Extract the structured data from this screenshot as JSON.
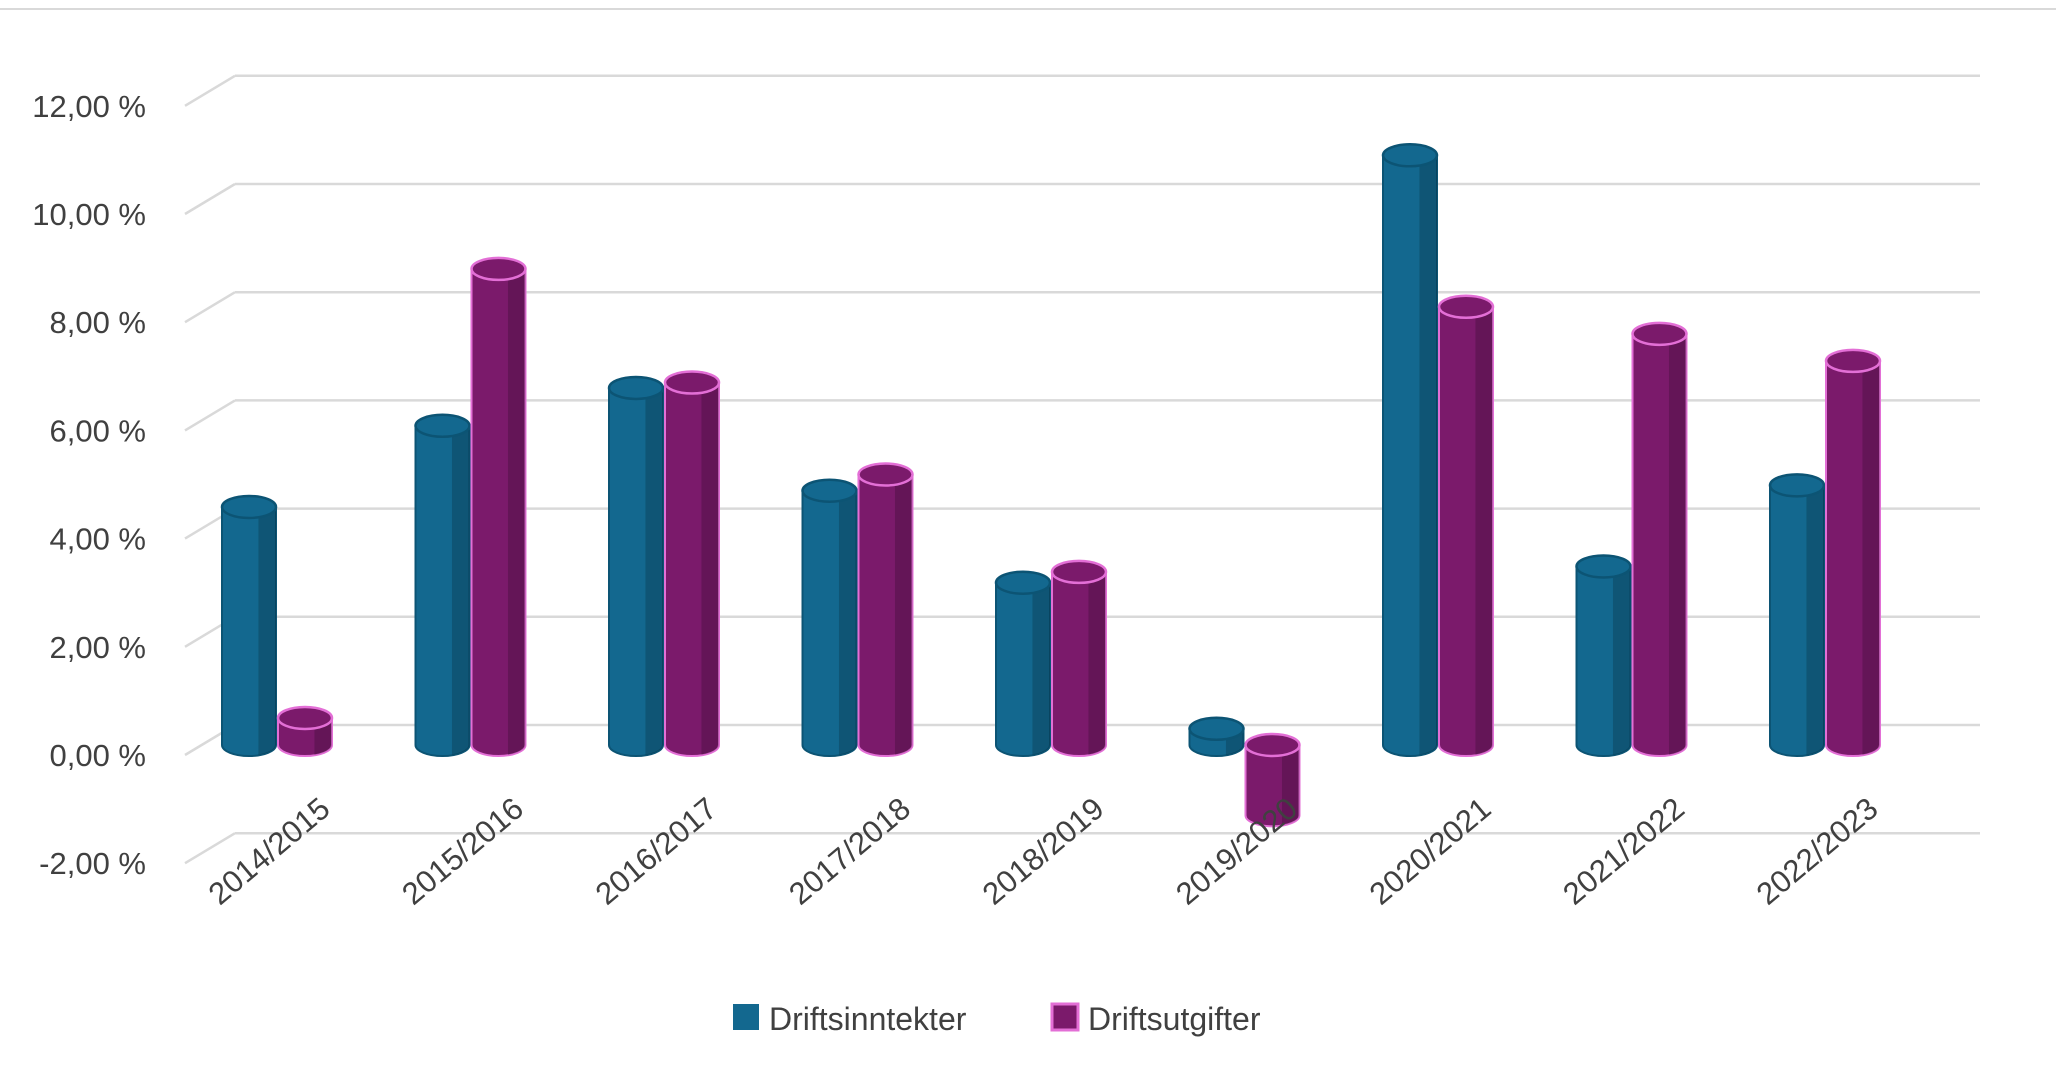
{
  "chart_data": {
    "type": "bar",
    "style": "3d-cylinder-clustered",
    "categories": [
      "2014/2015",
      "2015/2016",
      "2016/2017",
      "2017/2018",
      "2018/2019",
      "2019/2020",
      "2020/2021",
      "2021/2022",
      "2022/2023"
    ],
    "series": [
      {
        "name": "Driftsinntekter",
        "color": "#13688f",
        "edge": "#0c5474",
        "values": [
          4.4,
          5.9,
          6.6,
          4.7,
          3.0,
          0.3,
          10.9,
          3.3,
          4.8
        ]
      },
      {
        "name": "Driftsutgifter",
        "color": "#7b1a6b",
        "edge": "#e36fd6",
        "values": [
          0.5,
          8.8,
          6.7,
          5.0,
          3.2,
          -1.3,
          8.1,
          7.6,
          7.1
        ]
      }
    ],
    "ylim": [
      -2,
      12
    ],
    "yticks": [
      -2,
      0,
      2,
      4,
      6,
      8,
      10,
      12
    ],
    "ytick_labels": [
      "-2,00 %",
      "0,00 %",
      "2,00 %",
      "4,00 %",
      "6,00 %",
      "8,00 %",
      "10,00 %",
      "12,00 %"
    ],
    "grid": true,
    "legend": "bottom",
    "title": "",
    "xlabel": "",
    "ylabel": ""
  }
}
